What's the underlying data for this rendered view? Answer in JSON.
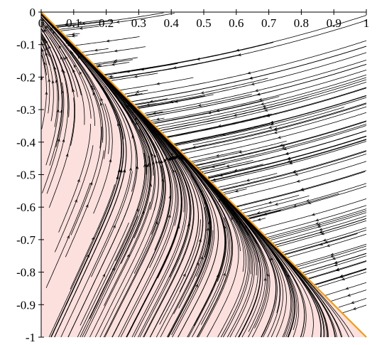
{
  "chart_data": {
    "type": "streamplot",
    "title": "",
    "xlabel": "",
    "ylabel": "",
    "xlim": [
      0,
      1
    ],
    "ylim": [
      -1,
      0
    ],
    "x_axis_position": "top",
    "x_ticks": [
      0,
      0.1,
      0.2,
      0.3,
      0.4,
      0.5,
      0.6,
      0.7,
      0.8,
      0.9,
      1
    ],
    "x_tick_labels": [
      "0",
      "0.1",
      "0.2",
      "0.3",
      "0.4",
      "0.5",
      "0.6",
      "0.7",
      "0.8",
      "0.9",
      "1"
    ],
    "y_ticks": [
      0,
      -0.1,
      -0.2,
      -0.3,
      -0.4,
      -0.5,
      -0.6,
      -0.7,
      -0.8,
      -0.9,
      -1
    ],
    "y_tick_labels": [
      "0",
      "-0.1",
      "-0.2",
      "-0.3",
      "-0.4",
      "-0.5",
      "-0.6",
      "-0.7",
      "-0.8",
      "-0.9",
      "-1"
    ],
    "grid": false,
    "shaded_region": {
      "description": "region below the line y = -x",
      "vertices": [
        [
          0,
          0
        ],
        [
          1,
          -1
        ],
        [
          0,
          -1
        ]
      ],
      "color": "#fbe0de"
    },
    "boundary_line": {
      "x": [
        0,
        1
      ],
      "y": [
        0,
        -1
      ],
      "color": "#f39c12"
    },
    "streamline_color": "#000000",
    "colors": {
      "shading": "#fbe0de",
      "boundary": "#f39c12",
      "streamlines": "#000000",
      "axes": "#000000"
    }
  }
}
